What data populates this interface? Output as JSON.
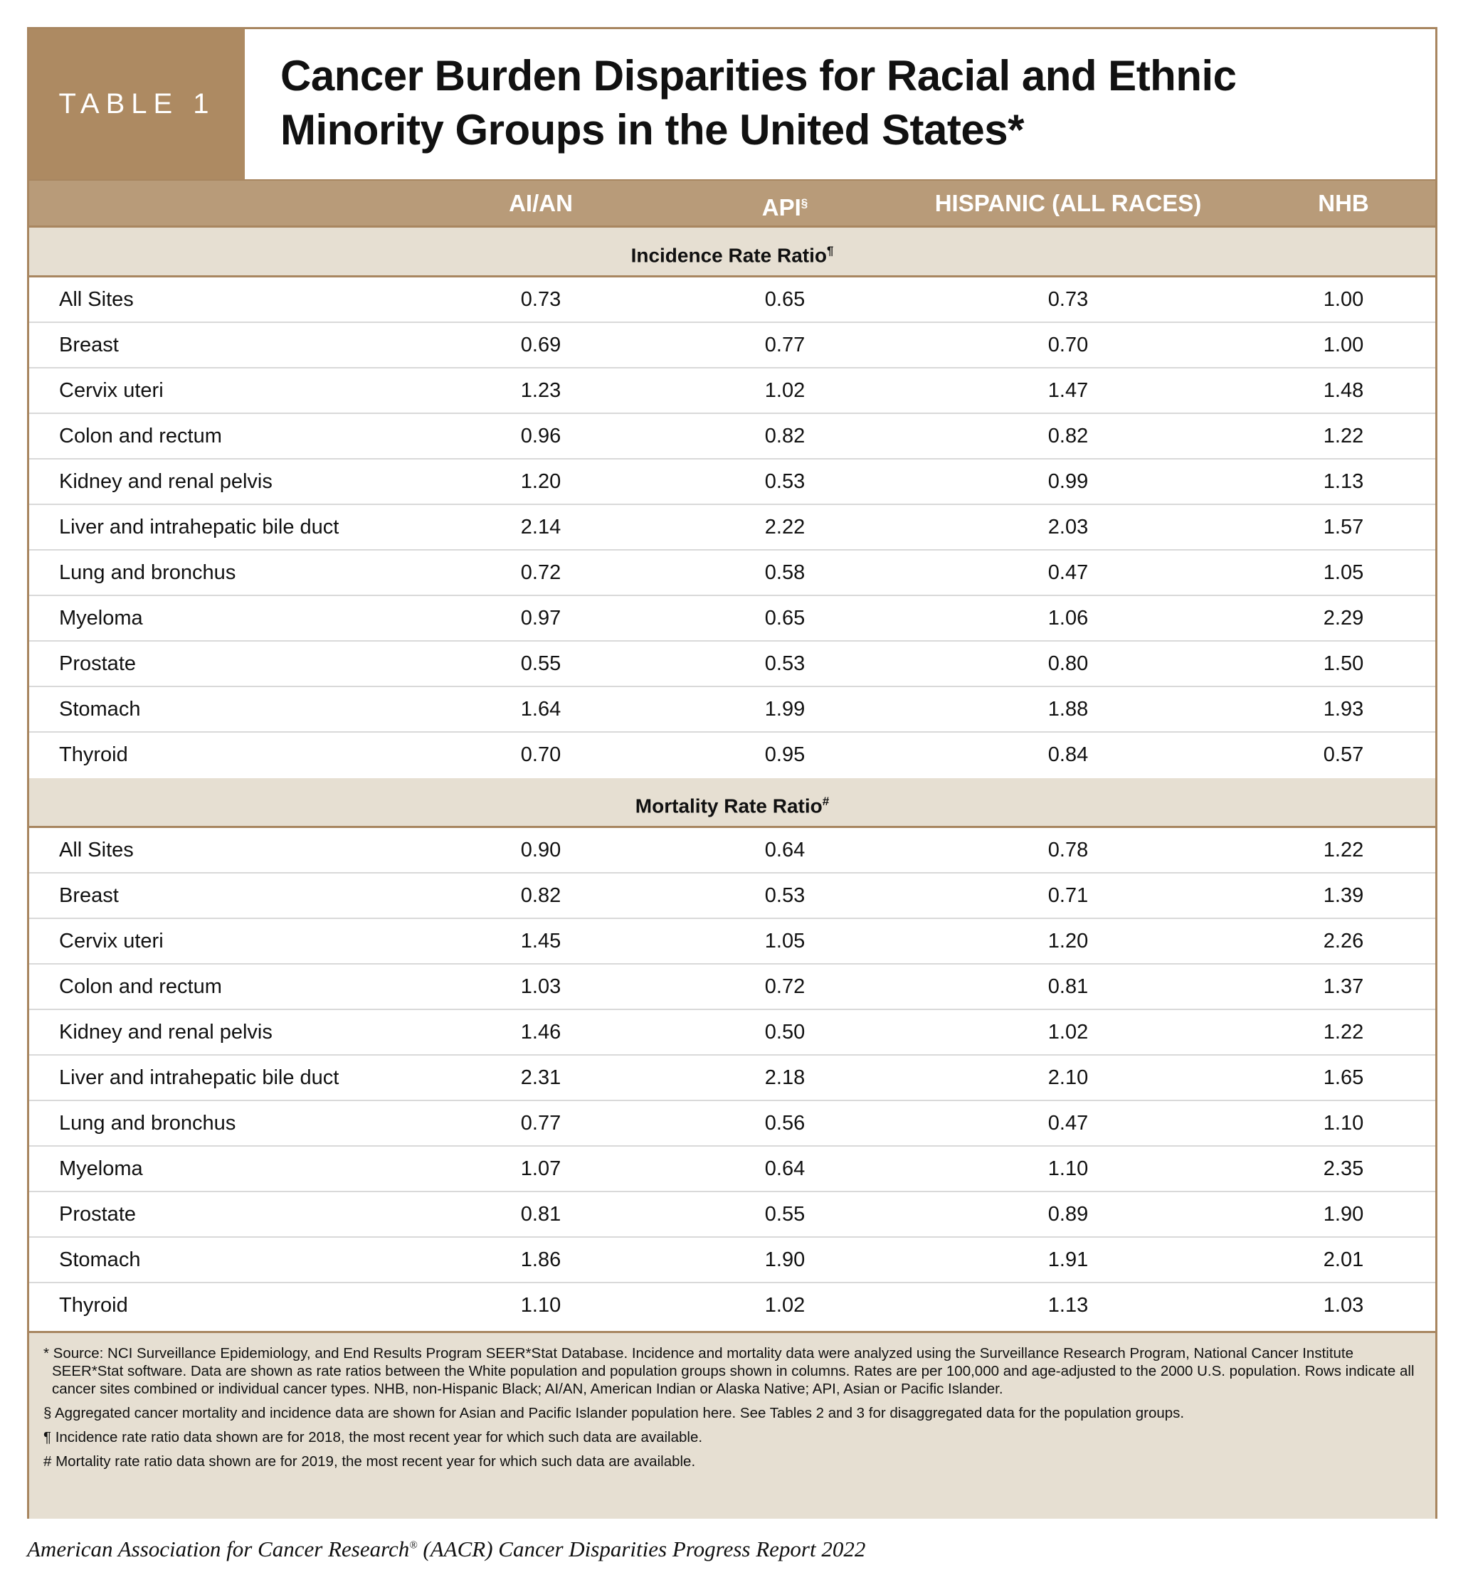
{
  "table_label": "TABLE 1",
  "title_line1": "Cancer Burden Disparities for Racial and Ethnic",
  "title_line2": "Minority Groups in the United States*",
  "columns": [
    "AI/AN",
    "API",
    "HISPANIC (ALL RACES)",
    "NHB"
  ],
  "api_mark": "§",
  "sections": [
    {
      "title": "Incidence Rate Ratio",
      "mark": "¶",
      "rows": [
        {
          "site": "All Sites",
          "values": [
            "0.73",
            "0.65",
            "0.73",
            "1.00"
          ]
        },
        {
          "site": "Breast",
          "values": [
            "0.69",
            "0.77",
            "0.70",
            "1.00"
          ]
        },
        {
          "site": "Cervix uteri",
          "values": [
            "1.23",
            "1.02",
            "1.47",
            "1.48"
          ]
        },
        {
          "site": "Colon and rectum",
          "values": [
            "0.96",
            "0.82",
            "0.82",
            "1.22"
          ]
        },
        {
          "site": "Kidney and renal pelvis",
          "values": [
            "1.20",
            "0.53",
            "0.99",
            "1.13"
          ]
        },
        {
          "site": "Liver and intrahepatic bile duct",
          "values": [
            "2.14",
            "2.22",
            "2.03",
            "1.57"
          ]
        },
        {
          "site": "Lung and bronchus",
          "values": [
            "0.72",
            "0.58",
            "0.47",
            "1.05"
          ]
        },
        {
          "site": "Myeloma",
          "values": [
            "0.97",
            "0.65",
            "1.06",
            "2.29"
          ]
        },
        {
          "site": "Prostate",
          "values": [
            "0.55",
            "0.53",
            "0.80",
            "1.50"
          ]
        },
        {
          "site": "Stomach",
          "values": [
            "1.64",
            "1.99",
            "1.88",
            "1.93"
          ]
        },
        {
          "site": "Thyroid",
          "values": [
            "0.70",
            "0.95",
            "0.84",
            "0.57"
          ]
        }
      ]
    },
    {
      "title": "Mortality Rate Ratio",
      "mark": "#",
      "rows": [
        {
          "site": "All Sites",
          "values": [
            "0.90",
            "0.64",
            "0.78",
            "1.22"
          ]
        },
        {
          "site": "Breast",
          "values": [
            "0.82",
            "0.53",
            "0.71",
            "1.39"
          ]
        },
        {
          "site": "Cervix uteri",
          "values": [
            "1.45",
            "1.05",
            "1.20",
            "2.26"
          ]
        },
        {
          "site": "Colon and rectum",
          "values": [
            "1.03",
            "0.72",
            "0.81",
            "1.37"
          ]
        },
        {
          "site": "Kidney and renal pelvis",
          "values": [
            "1.46",
            "0.50",
            "1.02",
            "1.22"
          ]
        },
        {
          "site": "Liver and intrahepatic bile duct",
          "values": [
            "2.31",
            "2.18",
            "2.10",
            "1.65"
          ]
        },
        {
          "site": "Lung and bronchus",
          "values": [
            "0.77",
            "0.56",
            "0.47",
            "1.10"
          ]
        },
        {
          "site": "Myeloma",
          "values": [
            "1.07",
            "0.64",
            "1.10",
            "2.35"
          ]
        },
        {
          "site": "Prostate",
          "values": [
            "0.81",
            "0.55",
            "0.89",
            "1.90"
          ]
        },
        {
          "site": "Stomach",
          "values": [
            "1.86",
            "1.90",
            "1.91",
            "2.01"
          ]
        },
        {
          "site": "Thyroid",
          "values": [
            "1.10",
            "1.02",
            "1.13",
            "1.03"
          ]
        }
      ]
    }
  ],
  "footnotes": [
    "* Source: NCI Surveillance Epidemiology, and End Results Program SEER*Stat Database. Incidence and mortality data were analyzed using the Surveillance Research Program, National Cancer Institute SEER*Stat software. Data are shown as rate ratios between the White population and population groups shown in columns. Rates are per 100,000 and age-adjusted to the 2000 U.S. population. Rows indicate all cancer sites combined or individual cancer types. NHB, non-Hispanic Black; AI/AN, American Indian or Alaska Native; API, Asian or Pacific Islander.",
    "§ Aggregated cancer mortality and incidence data are shown for Asian and Pacific Islander population here. See Tables 2 and 3 for disaggregated data for the population groups.",
    "¶ Incidence rate ratio data shown are for 2018, the most recent year for which such data are available.",
    "# Mortality rate ratio data shown are for 2019, the most recent year for which such data are available."
  ],
  "caption": "American Association for Cancer Research",
  "caption_reg": "®",
  "caption_rest": " (AACR) Cancer Disparities Progress Report 2022",
  "colors": {
    "brand_brown": "#ad8a62",
    "header_tan": "#b89b79",
    "section_beige": "#e6dfd2",
    "border": "#a88660"
  }
}
